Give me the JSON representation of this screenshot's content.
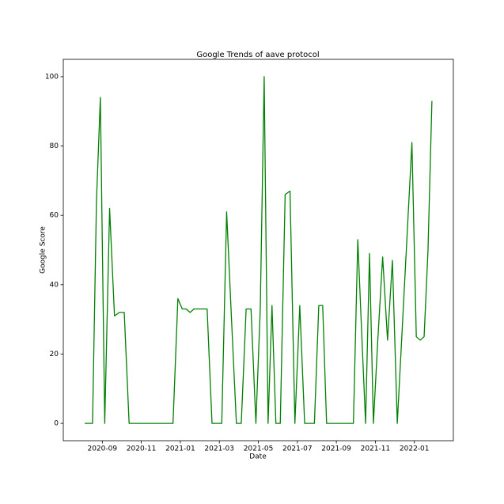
{
  "chart_data": {
    "type": "line",
    "title": "Google Trends of aave protocol",
    "xlabel": "Date",
    "ylabel": "Google Score",
    "x": [
      "2020-08",
      "2020-08",
      "2020-08",
      "2020-08",
      "2020-08",
      "2020-09",
      "2020-09",
      "2020-09",
      "2020-09",
      "2020-10",
      "2020-10",
      "2020-10",
      "2020-10",
      "2020-11",
      "2020-11",
      "2020-11",
      "2020-11",
      "2020-11",
      "2020-12",
      "2020-12",
      "2020-12",
      "2020-12",
      "2021-01",
      "2021-01",
      "2021-01",
      "2021-01",
      "2021-01",
      "2021-02",
      "2021-02",
      "2021-02",
      "2021-02",
      "2021-03",
      "2021-03",
      "2021-03",
      "2021-03",
      "2021-04",
      "2021-04",
      "2021-04",
      "2021-04",
      "2021-05",
      "2021-05",
      "2021-05",
      "2021-05",
      "2021-05",
      "2021-06",
      "2021-06",
      "2021-06",
      "2021-06",
      "2021-07",
      "2021-07",
      "2021-07",
      "2021-07",
      "2021-08",
      "2021-08",
      "2021-08",
      "2021-08",
      "2021-08",
      "2021-09",
      "2021-09",
      "2021-09",
      "2021-09",
      "2021-10",
      "2021-10",
      "2021-10",
      "2021-10",
      "2021-10",
      "2021-11",
      "2021-11",
      "2021-11",
      "2021-11",
      "2021-12",
      "2021-12",
      "2021-12",
      "2021-12",
      "2022-01",
      "2022-01",
      "2022-01",
      "2022-01",
      "2022-01"
    ],
    "values": [
      0,
      0,
      0,
      64,
      94,
      0,
      62,
      31,
      32,
      32,
      0,
      0,
      0,
      0,
      0,
      0,
      0,
      0,
      0,
      0,
      0,
      36,
      33,
      33,
      32,
      33,
      33,
      33,
      33,
      0,
      0,
      0,
      61,
      30,
      0,
      0,
      33,
      33,
      0,
      33,
      100,
      0,
      34,
      0,
      0,
      66,
      67,
      0,
      34,
      0,
      0,
      0,
      34,
      34,
      0,
      0,
      0,
      0,
      0,
      0,
      0,
      53,
      26,
      0,
      49,
      0,
      24,
      48,
      24,
      47,
      0,
      27,
      54,
      81,
      25,
      24,
      25,
      50,
      93
    ],
    "color": "#008000",
    "xlim": [
      "2020-07",
      "2022-03"
    ],
    "xticks": [
      "2020-09",
      "2020-11",
      "2021-01",
      "2021-03",
      "2021-05",
      "2021-07",
      "2021-09",
      "2021-11",
      "2022-01"
    ],
    "ylim": [
      -5,
      105
    ],
    "yticks": [
      0,
      20,
      40,
      60,
      80,
      100
    ]
  }
}
